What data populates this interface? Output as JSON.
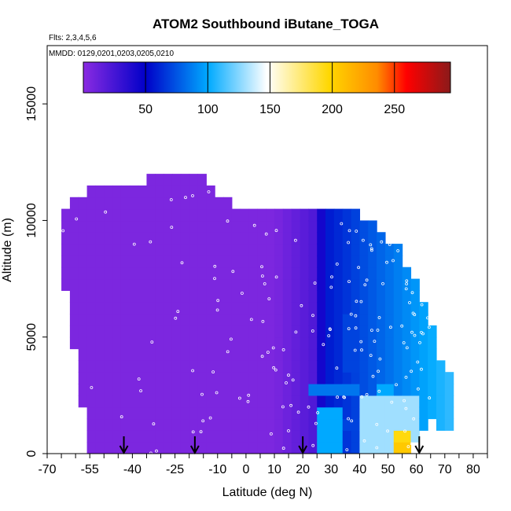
{
  "chart_data": {
    "type": "heatmap",
    "title": "ATOM2 Southbound iButane_TOGA",
    "subtitle_flights": "Flts: 2,3,4,5,6",
    "subtitle_dates": "MMDD: 0129,0201,0203,0205,0210",
    "xlabel": "Latitude (deg N)",
    "ylabel": "Altitude (m)",
    "xlim": [
      -70,
      85
    ],
    "ylim": [
      0,
      17500
    ],
    "x_ticks": [
      "-70",
      "-55",
      "-40",
      "-25",
      "-10",
      "0",
      "10",
      "20",
      "30",
      "40",
      "50",
      "60",
      "70",
      "80"
    ],
    "y_ticks": [
      "0",
      "5000",
      "10000",
      "15000"
    ],
    "colorbar": {
      "min": 0,
      "max": 295,
      "tick_labels": [
        "50",
        "100",
        "150",
        "200",
        "250"
      ],
      "colors": [
        "#8a2be2",
        "#0000c8",
        "#00aaff",
        "#ffffff",
        "#ffd700",
        "#ff8c00",
        "#ff0000",
        "#8b1a1a"
      ]
    },
    "arrow_latitudes": [
      -43,
      -18,
      20,
      61
    ],
    "columns": [
      {
        "lat": -65,
        "top": 10300,
        "base_low": 8500,
        "base_high": 8700
      },
      {
        "lat": -60,
        "top": 11000,
        "base_low": 4200,
        "base_high": 5500
      },
      {
        "lat": -55,
        "top": 11400,
        "base_low": 0,
        "base_high": 1500
      },
      {
        "lat": -45,
        "top": 11600,
        "base_low": 0,
        "base_high": 200
      },
      {
        "lat": -30,
        "top": 11800,
        "base_low": 0,
        "base_high": 0
      },
      {
        "lat": -15,
        "top": 12000,
        "base_low": 0,
        "base_high": 0
      },
      {
        "lat": -10,
        "top": 10900,
        "base_low": 0,
        "base_high": 0
      },
      {
        "lat": 0,
        "top": 10600,
        "base_low": 0,
        "base_high": 0
      },
      {
        "lat": 10,
        "top": 10700,
        "base_low": 0,
        "base_high": 0
      },
      {
        "lat": 20,
        "top": 10700,
        "base_low": 0,
        "base_high": 0
      },
      {
        "lat": 30,
        "top": 10500,
        "base_low": 0,
        "base_high": 0
      },
      {
        "lat": 40,
        "top": 10300,
        "base_low": 0,
        "base_high": 0
      },
      {
        "lat": 47,
        "top": 9700,
        "base_low": 0,
        "base_high": 0
      },
      {
        "lat": 55,
        "top": 8600,
        "base_low": 0,
        "base_high": 0
      },
      {
        "lat": 60,
        "top": 7200,
        "base_low": 500,
        "base_high": 1000
      },
      {
        "lat": 65,
        "top": 5500,
        "base_low": 1500,
        "base_high": 2000
      },
      {
        "lat": 70,
        "top": 3500,
        "base_low": 1000,
        "base_high": 1000
      }
    ],
    "features": [
      {
        "lat": [
          22,
          40
        ],
        "alt": [
          2300,
          2900
        ],
        "value": 85
      },
      {
        "lat": [
          35,
          65
        ],
        "alt": [
          3500,
          6000
        ],
        "value": 70
      },
      {
        "lat": [
          28,
          50
        ],
        "alt": [
          1100,
          1500
        ],
        "value": 70
      },
      {
        "lat": [
          40,
          62
        ],
        "alt": [
          0,
          2500
        ],
        "value": 130
      },
      {
        "lat": [
          51,
          58
        ],
        "alt": [
          0,
          1200
        ],
        "value": 195
      },
      {
        "lat": [
          53,
          57
        ],
        "alt": [
          0,
          600
        ],
        "value": 205
      },
      {
        "lat": [
          46,
          52
        ],
        "alt": [
          1500,
          2800
        ],
        "value": 100
      },
      {
        "lat": [
          24,
          34
        ],
        "alt": [
          0,
          2000
        ],
        "value": 100
      }
    ]
  }
}
